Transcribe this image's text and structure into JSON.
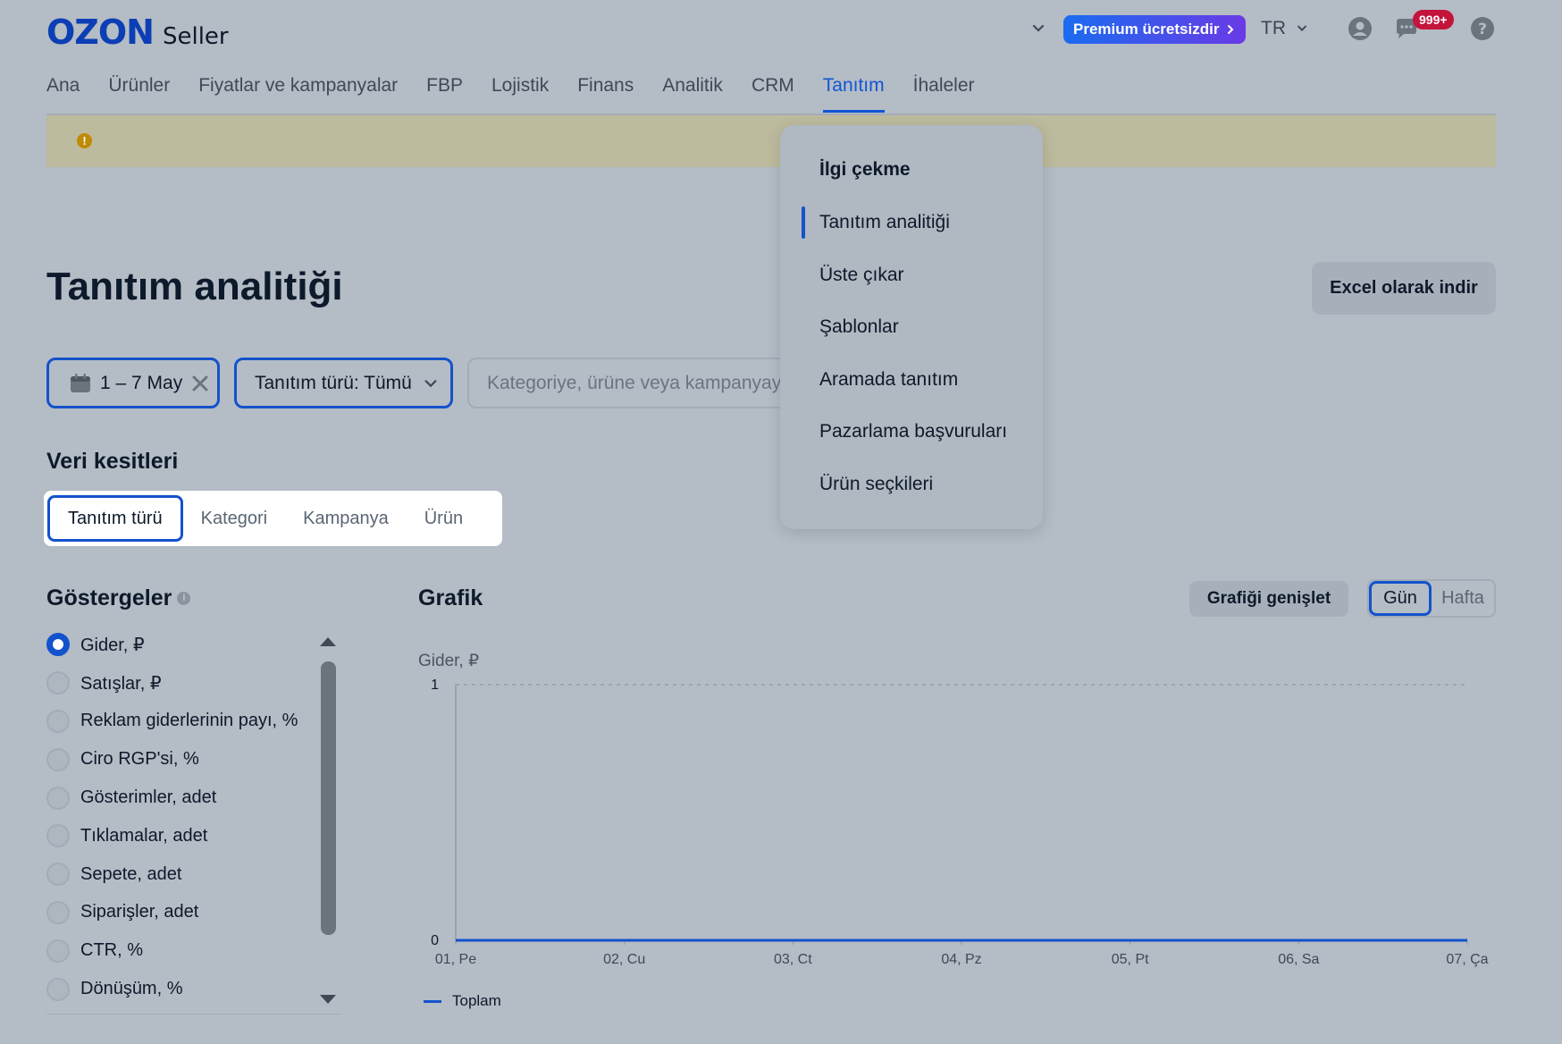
{
  "header": {
    "logo_brand": "OZON",
    "logo_suffix": "Seller",
    "premium_label": "Premium ücretsizdir",
    "language": "TR",
    "notifications_badge": "999+",
    "icons": [
      "chevron-down-icon",
      "user-icon",
      "chat-icon",
      "help-icon"
    ]
  },
  "nav": {
    "items": [
      {
        "label": "Ana"
      },
      {
        "label": "Ürünler"
      },
      {
        "label": "Fiyatlar ve kampanyalar"
      },
      {
        "label": "FBP"
      },
      {
        "label": "Lojistik"
      },
      {
        "label": "Finans"
      },
      {
        "label": "Analitik"
      },
      {
        "label": "CRM"
      },
      {
        "label": "Tanıtım",
        "active": true
      },
      {
        "label": "İhaleler"
      }
    ]
  },
  "banner": {
    "icon": "!"
  },
  "page": {
    "title": "Tanıtım analitiği",
    "excel_button": "Excel olarak indir"
  },
  "filters": {
    "date": "1 – 7 May",
    "type": "Tanıtım türü: Tümü",
    "search_placeholder": "Kategoriye, ürüne veya kampanyaya"
  },
  "slices": {
    "title": "Veri kesitleri",
    "tabs": [
      "Tanıtım türü",
      "Kategori",
      "Kampanya",
      "Ürün"
    ],
    "active": "Tanıtım türü"
  },
  "metrics": {
    "title": "Göstergeler",
    "info_icon": "i",
    "items": [
      {
        "label": "Gider, ₽",
        "checked": true
      },
      {
        "label": "Satışlar, ₽"
      },
      {
        "label": "Reklam giderlerinin payı, %"
      },
      {
        "label": "Ciro RGP'si, %"
      },
      {
        "label": "Gösterimler, adet"
      },
      {
        "label": "Tıklamalar, adet"
      },
      {
        "label": "Sepete, adet"
      },
      {
        "label": "Siparişler, adet"
      },
      {
        "label": "CTR, %"
      },
      {
        "label": "Dönüşüm, %"
      }
    ]
  },
  "graph": {
    "title": "Grafik",
    "expand_button": "Grafiği genişlet",
    "toggle": [
      "Gün",
      "Hafta"
    ],
    "toggle_active": "Gün",
    "legend": "Toplam"
  },
  "chart_data": {
    "type": "line",
    "ylabel": "Gider, ₽",
    "ylim": [
      0,
      1
    ],
    "y_ticks": [
      "0",
      "1"
    ],
    "categories": [
      "01, Pe",
      "02, Cu",
      "03, Ct",
      "04, Pz",
      "05, Pt",
      "06, Sa",
      "07, Ça"
    ],
    "series": [
      {
        "name": "Toplam",
        "values": [
          0,
          0,
          0,
          0,
          0,
          0,
          0
        ],
        "color": "#1452cc"
      }
    ],
    "grid": true
  },
  "dropdown": {
    "items": [
      {
        "label": "İlgi çekme",
        "bold": true
      },
      {
        "label": "Tanıtım analitiği",
        "active": true
      },
      {
        "label": "Üste çıkar"
      },
      {
        "label": "Şablonlar"
      },
      {
        "label": "Aramada tanıtım"
      },
      {
        "label": "Pazarlama başvuruları"
      },
      {
        "label": "Ürün seçkileri"
      }
    ]
  },
  "colors": {
    "accent": "#1452cc",
    "badge": "#c4143c",
    "overlay_bg": "#b4bcc5"
  }
}
